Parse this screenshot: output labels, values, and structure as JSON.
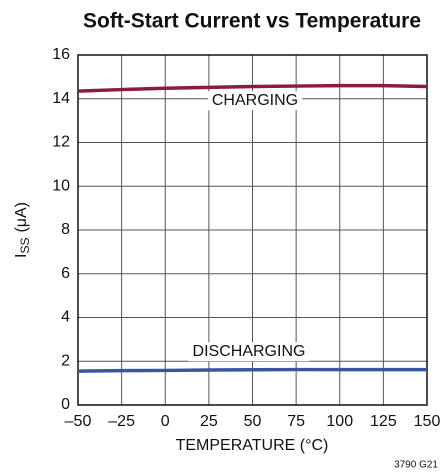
{
  "chart_data": {
    "type": "line",
    "title": "Soft-Start Current vs Temperature",
    "xlabel": "TEMPERATURE (°C)",
    "ylabel": {
      "base": "I",
      "subscript": "SS",
      "unit": "(μA)"
    },
    "footnote": "3790 G21",
    "x": [
      -50,
      -25,
      0,
      25,
      50,
      75,
      100,
      125,
      150
    ],
    "series": [
      {
        "name": "CHARGING",
        "color": "#8c1c3c",
        "values": [
          14.35,
          14.42,
          14.48,
          14.52,
          14.56,
          14.58,
          14.6,
          14.6,
          14.56
        ]
      },
      {
        "name": "DISCHARGING",
        "color": "#3a55a0",
        "values": [
          1.55,
          1.57,
          1.58,
          1.6,
          1.61,
          1.62,
          1.62,
          1.62,
          1.62
        ]
      }
    ],
    "xlim": [
      -50,
      150
    ],
    "xticks": [
      {
        "value": -50,
        "label": "–50"
      },
      {
        "value": -25,
        "label": "–25"
      },
      0,
      25,
      50,
      75,
      100,
      125,
      150
    ],
    "ylim": [
      0,
      16
    ],
    "yticks": [
      0,
      2,
      4,
      6,
      8,
      10,
      12,
      14,
      16
    ],
    "grid": true
  }
}
